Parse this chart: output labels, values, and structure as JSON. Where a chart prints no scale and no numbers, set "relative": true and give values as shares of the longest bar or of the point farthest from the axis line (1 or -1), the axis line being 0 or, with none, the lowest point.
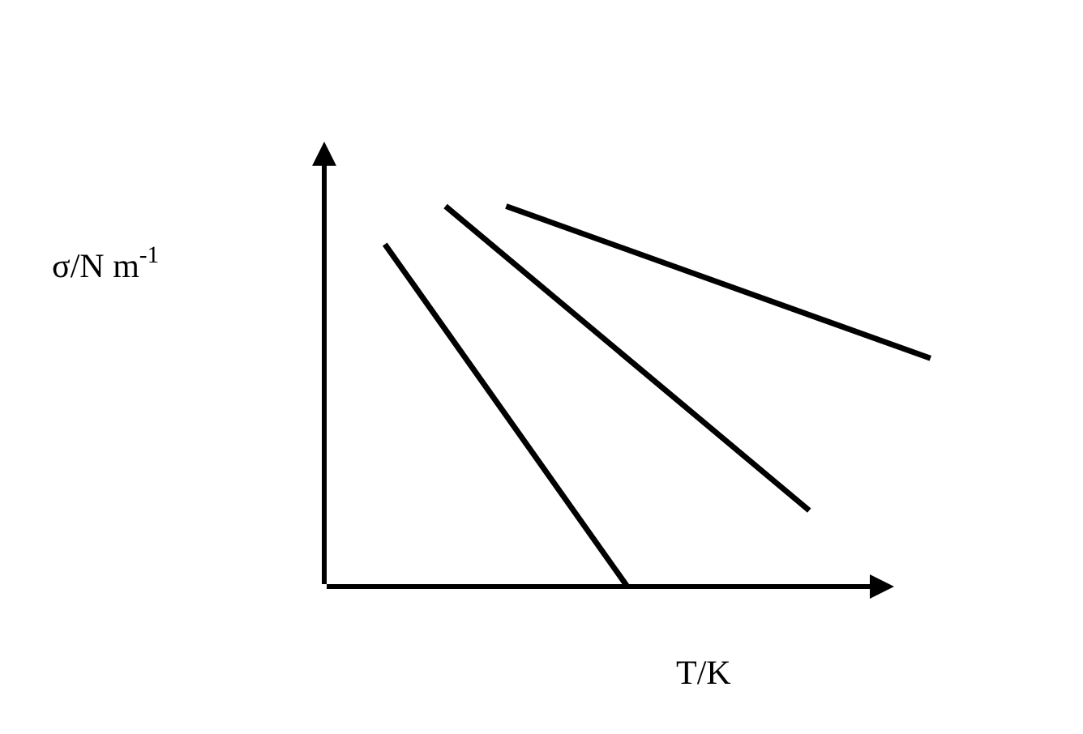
{
  "chart_data": {
    "type": "line",
    "relative": true,
    "xlabel": "T/K",
    "ylabel": "σ/N m$^{-1}$",
    "marker": "none",
    "line_style": "solid",
    "categories": [
      null,
      null,
      null,
      null,
      null,
      null,
      null,
      null,
      null,
      null,
      null,
      null,
      null,
      null,
      null,
      null,
      null,
      null,
      null,
      null,
      null
    ],
    "series": [
      {
        "color": "#000000",
        "values": [
          null,
          null,
          0.9,
          null,
          null,
          null,
          null,
          null,
          null,
          null,
          0.0,
          null,
          null,
          null,
          null,
          null,
          null,
          null,
          null,
          null,
          null
        ]
      },
      {
        "color": "#000000",
        "values": [
          null,
          null,
          null,
          null,
          1.0,
          null,
          null,
          null,
          null,
          null,
          null,
          null,
          null,
          null,
          null,
          null,
          0.2,
          null,
          null,
          null,
          null
        ]
      },
      {
        "color": "#000000",
        "values": [
          null,
          null,
          null,
          null,
          null,
          null,
          1.0,
          null,
          null,
          null,
          null,
          null,
          null,
          null,
          null,
          null,
          null,
          null,
          null,
          null,
          0.6
        ]
      }
    ]
  }
}
